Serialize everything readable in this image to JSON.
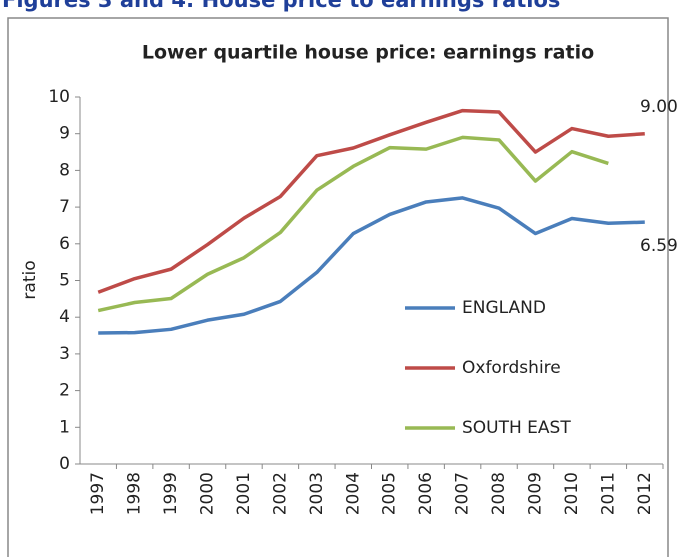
{
  "header": {
    "title": "Figures 3 and 4: House price to earnings ratios"
  },
  "chart_data": {
    "type": "line",
    "title": "Lower quartile house price: earnings ratio",
    "y_label": "ratio",
    "categories": [
      "1997",
      "1998",
      "1999",
      "2000",
      "2001",
      "2002",
      "2003",
      "2004",
      "2005",
      "2006",
      "2007",
      "2008",
      "2009",
      "2010",
      "2011",
      "2012"
    ],
    "series": [
      {
        "name": "ENGLAND",
        "color": "#4a7ebb",
        "values": [
          3.57,
          3.58,
          3.67,
          3.92,
          4.08,
          4.43,
          5.22,
          6.28,
          6.8,
          7.14,
          7.25,
          6.97,
          6.28,
          6.69,
          6.56,
          6.59
        ]
      },
      {
        "name": "Oxfordshire",
        "color": "#be4b48",
        "values": [
          4.68,
          5.05,
          5.31,
          5.98,
          6.7,
          7.29,
          8.4,
          8.61,
          8.97,
          9.31,
          9.63,
          9.59,
          8.5,
          9.14,
          8.93,
          9.0
        ]
      },
      {
        "name": "SOUTH EAST",
        "color": "#98b954",
        "values": [
          4.18,
          4.4,
          4.51,
          5.17,
          5.62,
          6.31,
          7.46,
          8.11,
          8.62,
          8.58,
          8.9,
          8.83,
          7.71,
          8.51,
          8.19,
          null
        ]
      }
    ],
    "annotations": [
      "9.00",
      "6.59"
    ],
    "ylim": [
      0,
      10
    ],
    "yticks": [
      0,
      1,
      2,
      3,
      4,
      5,
      6,
      7,
      8,
      9,
      10
    ],
    "grid": false
  }
}
